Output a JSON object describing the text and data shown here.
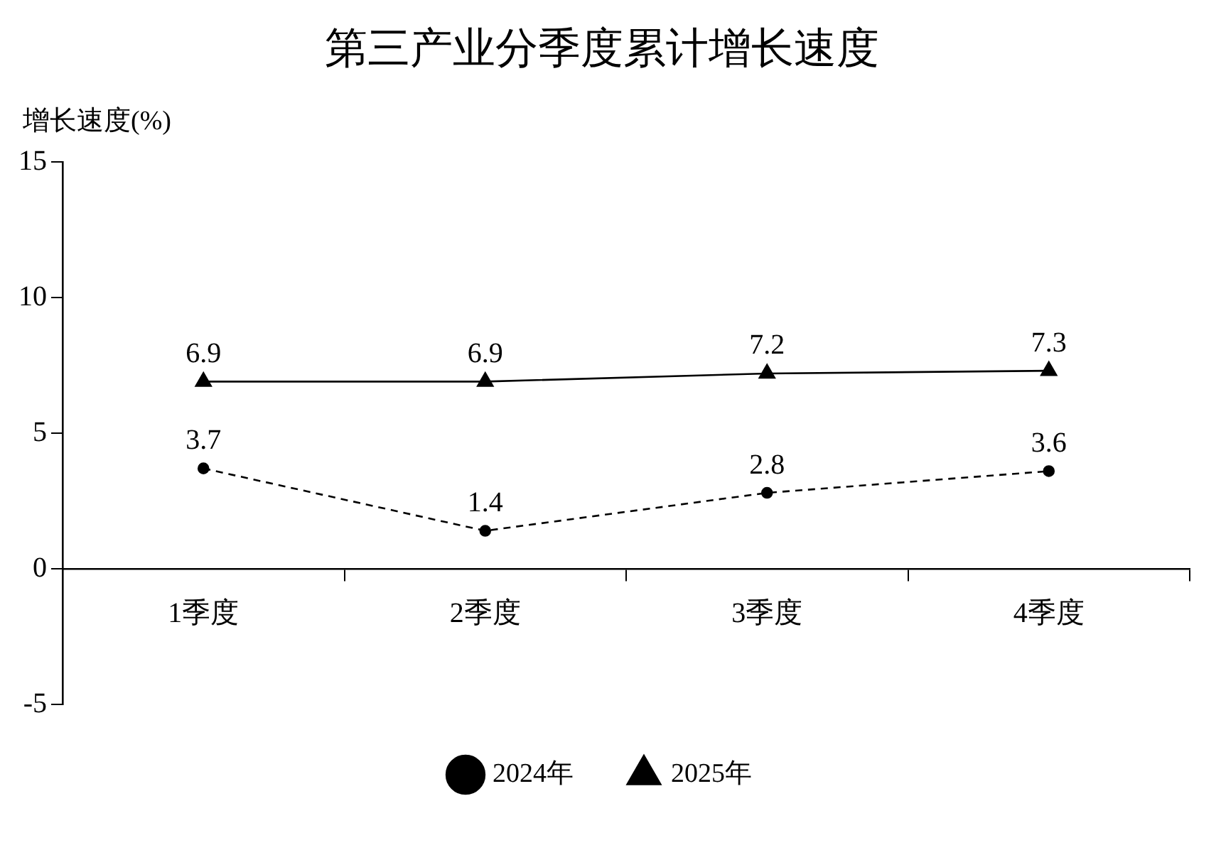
{
  "chart_data": {
    "type": "line",
    "title": "第三产业分季度累计增长速度",
    "ylabel": "增长速度(%)",
    "categories": [
      "1季度",
      "2季度",
      "3季度",
      "4季度"
    ],
    "series": [
      {
        "name": "2024年",
        "color": "#000000",
        "values": [
          3.7,
          1.4,
          2.8,
          3.6
        ],
        "marker": "circle",
        "line_style": "dashed"
      },
      {
        "name": "2025年",
        "color": "#000000",
        "values": [
          6.9,
          6.9,
          7.2,
          7.3
        ],
        "marker": "triangle",
        "line_style": "solid"
      }
    ],
    "ylim": [
      -5,
      15
    ],
    "yticks": [
      -5,
      0,
      5,
      10,
      15
    ],
    "grid": false,
    "legend": "bottom",
    "data_labels": true
  }
}
